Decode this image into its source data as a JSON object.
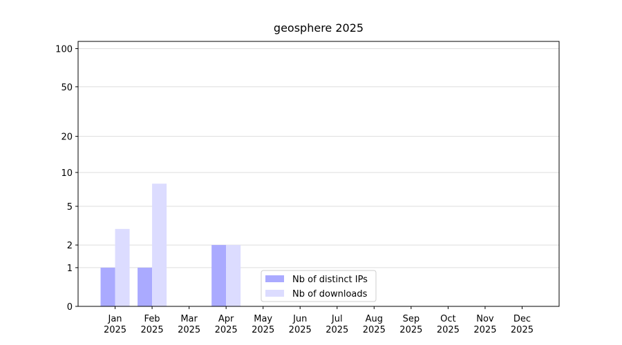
{
  "chart_data": {
    "type": "bar",
    "title": "geosphere 2025",
    "categories": [
      "Jan\n2025",
      "Feb\n2025",
      "Mar\n2025",
      "Apr\n2025",
      "May\n2025",
      "Jun\n2025",
      "Jul\n2025",
      "Aug\n2025",
      "Sep\n2025",
      "Oct\n2025",
      "Nov\n2025",
      "Dec\n2025"
    ],
    "series": [
      {
        "name": "Nb of distinct IPs",
        "color": "#aaaaff",
        "values": [
          1,
          1,
          0,
          2,
          0,
          0,
          0,
          0,
          0,
          0,
          0,
          0
        ]
      },
      {
        "name": "Nb of downloads",
        "color": "#dcdcff",
        "values": [
          3,
          8,
          0,
          2,
          0,
          0,
          0,
          0,
          0,
          0,
          0,
          0
        ]
      }
    ],
    "scale": "log1p",
    "ylim": [
      0,
      114
    ],
    "yticks": [
      0,
      1,
      2,
      5,
      10,
      20,
      50,
      100
    ],
    "grid": true,
    "legend": "lower center"
  }
}
